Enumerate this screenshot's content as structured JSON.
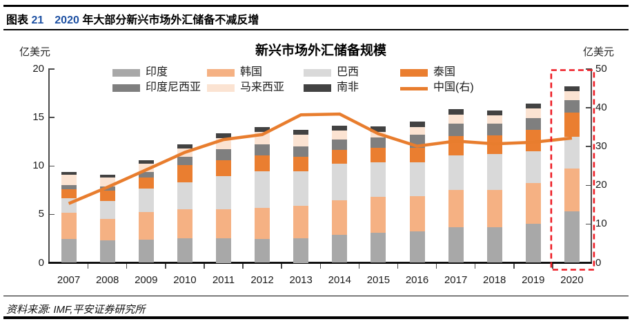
{
  "header": {
    "figure_label": "图表",
    "figure_number": "21",
    "title_number": "2020",
    "title_text": "年大部分新兴市场外汇储备不减反增"
  },
  "footer": {
    "source": "资料来源: IMF,平安证券研究所"
  },
  "chart_data": {
    "type": "bar",
    "subtype": "stacked-bar-with-line",
    "title": "新兴市场外汇储备规模",
    "legend_position": "top",
    "grid": "off",
    "left_axis": {
      "unit": "亿美元",
      "min": 0,
      "max": 20,
      "ticks": [
        "0",
        "5",
        "10",
        "15",
        "20"
      ]
    },
    "right_axis": {
      "unit": "亿美元",
      "min": 0,
      "max": 50,
      "ticks": [
        "0",
        "10",
        "20",
        "30",
        "40",
        "50"
      ]
    },
    "categories": [
      "2007",
      "2008",
      "2009",
      "2010",
      "2011",
      "2012",
      "2013",
      "2014",
      "2015",
      "2016",
      "2017",
      "2018",
      "2019",
      "2020"
    ],
    "series": [
      {
        "name": "印度",
        "color": "#a8a8a8",
        "values": [
          2.45,
          2.35,
          2.4,
          2.55,
          2.5,
          2.45,
          2.5,
          2.9,
          3.1,
          3.25,
          3.7,
          3.7,
          4.05,
          5.3
        ]
      },
      {
        "name": "韩国",
        "color": "#f5b183",
        "values": [
          2.75,
          2.15,
          2.85,
          3.0,
          3.05,
          3.25,
          3.35,
          3.55,
          3.7,
          3.6,
          3.85,
          3.8,
          4.15,
          4.4
        ]
      },
      {
        "name": "巴西",
        "color": "#d9d9d9",
        "values": [
          1.45,
          1.9,
          2.4,
          2.75,
          3.4,
          3.75,
          3.6,
          3.8,
          3.55,
          3.55,
          3.55,
          3.75,
          3.35,
          3.3
        ]
      },
      {
        "name": "泰国",
        "color": "#ea7e30",
        "values": [
          0.95,
          1.05,
          1.15,
          1.8,
          1.65,
          1.65,
          1.5,
          1.4,
          1.5,
          1.5,
          1.95,
          1.9,
          2.2,
          2.5
        ]
      },
      {
        "name": "印度尼西亚",
        "color": "#7f7f7f",
        "values": [
          0.45,
          0.45,
          0.55,
          0.85,
          1.15,
          1.1,
          1.05,
          1.05,
          1.1,
          1.35,
          1.3,
          1.25,
          1.2,
          1.3
        ]
      },
      {
        "name": "马来西亚",
        "color": "#fbe3d2",
        "values": [
          1.05,
          0.9,
          0.9,
          0.85,
          1.15,
          1.3,
          1.2,
          0.95,
          0.55,
          0.75,
          0.95,
          0.85,
          1.0,
          0.9
        ]
      },
      {
        "name": "南非",
        "color": "#424242",
        "values": [
          0.3,
          0.3,
          0.35,
          0.4,
          0.5,
          0.5,
          0.55,
          0.5,
          0.55,
          0.55,
          0.6,
          0.5,
          0.5,
          0.55
        ]
      }
    ],
    "line_series": {
      "name": "中国(右)",
      "axis": "right",
      "color": "#e87d2e",
      "values": [
        15.3,
        19.5,
        24.0,
        28.5,
        31.8,
        33.1,
        38.2,
        38.4,
        33.3,
        30.1,
        31.4,
        30.7,
        31.1,
        32.2
      ]
    },
    "highlight": {
      "category": "2020",
      "style": "dashed-box",
      "color": "#ed1c24"
    }
  }
}
